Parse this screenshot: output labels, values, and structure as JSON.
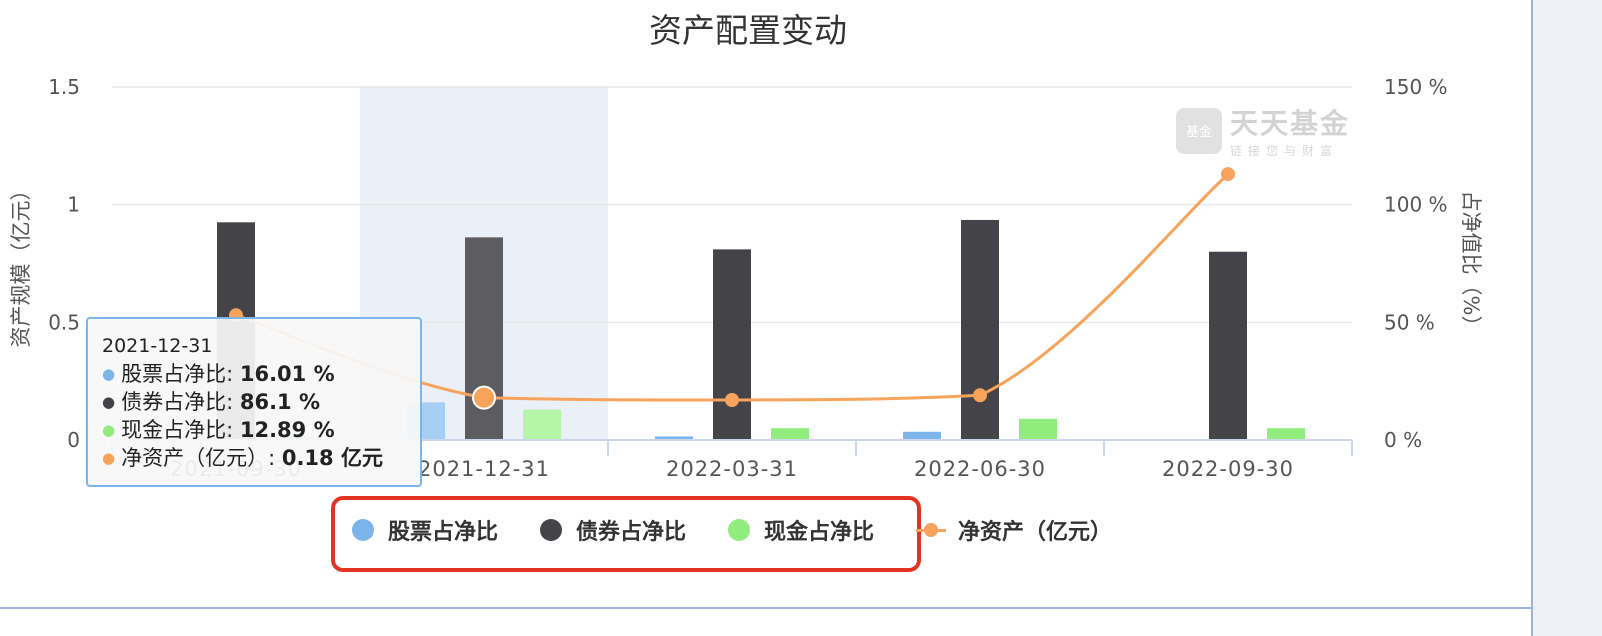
{
  "chart_data": {
    "type": "bar",
    "title": "资产配置变动",
    "categories": [
      "2021-09-30",
      "2021-12-31",
      "2022-03-31",
      "2022-06-30",
      "2022-09-30"
    ],
    "series": [
      {
        "name": "股票占净比",
        "type": "bar",
        "axis": "right",
        "color": "#7cb5ec",
        "values": [
          1.0,
          16.01,
          1.5,
          3.5,
          0
        ]
      },
      {
        "name": "债券占净比",
        "type": "bar",
        "axis": "right",
        "color": "#434348",
        "values": [
          92.5,
          86.1,
          81.0,
          93.5,
          80.0
        ]
      },
      {
        "name": "现金占净比",
        "type": "bar",
        "axis": "right",
        "color": "#90ed7d",
        "values": [
          1.5,
          12.89,
          5.0,
          9.0,
          5.0
        ]
      },
      {
        "name": "净资产（亿元）",
        "type": "line",
        "axis": "left",
        "color": "#f7a35c",
        "values": [
          0.53,
          0.18,
          0.17,
          0.19,
          1.13
        ]
      }
    ],
    "ylabel": "资产规模（亿元）",
    "y2label": "占净值比（%）",
    "ylim": [
      0,
      1.5
    ],
    "y2lim": [
      0,
      150
    ],
    "yticks": [
      "0",
      "0.5",
      "1",
      "1.5"
    ],
    "y2ticks": [
      "0 %",
      "50 %",
      "100 %",
      "150 %"
    ],
    "grid": true,
    "legend": "bottom-center",
    "highlight_index": 1
  },
  "tooltip": {
    "date": "2021-12-31",
    "rows": [
      {
        "label": "股票占净比: ",
        "value": "16.01 %",
        "color": "#7cb5ec"
      },
      {
        "label": "债券占净比: ",
        "value": "86.1 %",
        "color": "#434348"
      },
      {
        "label": "现金占净比: ",
        "value": "12.89 %",
        "color": "#90ed7d"
      },
      {
        "label": "净资产（亿元）: ",
        "value": "0.18 亿元",
        "color": "#f7a35c"
      }
    ]
  },
  "legend": {
    "items": [
      {
        "label": "股票占净比",
        "color": "#7cb5ec",
        "shape": "dot"
      },
      {
        "label": "债券占净比",
        "color": "#434348",
        "shape": "dot"
      },
      {
        "label": "现金占净比",
        "color": "#90ed7d",
        "shape": "dot"
      },
      {
        "label": "净资产（亿元）",
        "color": "#f7a35c",
        "shape": "line"
      }
    ]
  },
  "watermark": {
    "name": "天天基金",
    "slogan": "链接您与财富",
    "logo": "基金"
  }
}
